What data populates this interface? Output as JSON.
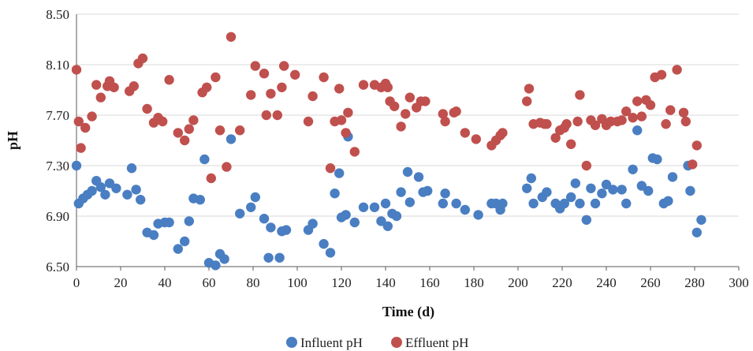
{
  "chart_data": {
    "type": "scatter",
    "title": "",
    "xlabel": "Time (d)",
    "ylabel": "pH",
    "xlim": [
      0,
      300
    ],
    "ylim": [
      6.5,
      8.5
    ],
    "xticks": [
      "0",
      "20",
      "40",
      "60",
      "80",
      "100",
      "120",
      "140",
      "160",
      "180",
      "200",
      "220",
      "240",
      "260",
      "280",
      "300"
    ],
    "yticks": [
      "6.50",
      "6.90",
      "7.30",
      "7.70",
      "8.10",
      "8.50"
    ],
    "grid": true,
    "legend": "bottom",
    "series": [
      {
        "name": "Influent pH",
        "color": "#4a7ec2",
        "points": [
          [
            0,
            7.3
          ],
          [
            1,
            7.0
          ],
          [
            3,
            7.04
          ],
          [
            5,
            7.07
          ],
          [
            7,
            7.1
          ],
          [
            9,
            7.18
          ],
          [
            11,
            7.13
          ],
          [
            13,
            7.07
          ],
          [
            15,
            7.16
          ],
          [
            18,
            7.12
          ],
          [
            23,
            7.07
          ],
          [
            25,
            7.28
          ],
          [
            27,
            7.11
          ],
          [
            29,
            7.03
          ],
          [
            32,
            6.77
          ],
          [
            35,
            6.75
          ],
          [
            37,
            6.84
          ],
          [
            40,
            6.85
          ],
          [
            42,
            6.85
          ],
          [
            46,
            6.64
          ],
          [
            49,
            6.7
          ],
          [
            51,
            6.86
          ],
          [
            53,
            7.04
          ],
          [
            56,
            7.03
          ],
          [
            58,
            7.35
          ],
          [
            60,
            6.53
          ],
          [
            63,
            6.51
          ],
          [
            65,
            6.6
          ],
          [
            67,
            6.56
          ],
          [
            70,
            7.51
          ],
          [
            74,
            6.92
          ],
          [
            79,
            6.97
          ],
          [
            81,
            7.05
          ],
          [
            85,
            6.88
          ],
          [
            87,
            6.57
          ],
          [
            88,
            6.81
          ],
          [
            92,
            6.57
          ],
          [
            93,
            6.78
          ],
          [
            95,
            6.79
          ],
          [
            105,
            6.79
          ],
          [
            107,
            6.84
          ],
          [
            112,
            6.68
          ],
          [
            115,
            6.61
          ],
          [
            117,
            7.08
          ],
          [
            119,
            7.24
          ],
          [
            120,
            6.89
          ],
          [
            122,
            6.91
          ],
          [
            123,
            7.53
          ],
          [
            126,
            6.85
          ],
          [
            130,
            6.97
          ],
          [
            135,
            6.97
          ],
          [
            138,
            6.86
          ],
          [
            140,
            7.0
          ],
          [
            141,
            6.82
          ],
          [
            143,
            6.92
          ],
          [
            145,
            6.9
          ],
          [
            147,
            7.09
          ],
          [
            150,
            7.25
          ],
          [
            151,
            7.01
          ],
          [
            155,
            7.21
          ],
          [
            157,
            7.09
          ],
          [
            159,
            7.1
          ],
          [
            166,
            7.0
          ],
          [
            167,
            7.08
          ],
          [
            172,
            7.0
          ],
          [
            176,
            6.95
          ],
          [
            182,
            6.91
          ],
          [
            188,
            7.0
          ],
          [
            190,
            7.0
          ],
          [
            192,
            6.95
          ],
          [
            193,
            7.0
          ],
          [
            204,
            7.12
          ],
          [
            206,
            7.2
          ],
          [
            207,
            7.0
          ],
          [
            211,
            7.05
          ],
          [
            213,
            7.09
          ],
          [
            217,
            7.0
          ],
          [
            219,
            6.96
          ],
          [
            221,
            7.0
          ],
          [
            224,
            7.05
          ],
          [
            226,
            7.16
          ],
          [
            228,
            7.0
          ],
          [
            231,
            6.87
          ],
          [
            233,
            7.12
          ],
          [
            235,
            7.0
          ],
          [
            238,
            7.08
          ],
          [
            240,
            7.15
          ],
          [
            243,
            7.11
          ],
          [
            247,
            7.11
          ],
          [
            249,
            7.0
          ],
          [
            252,
            7.27
          ],
          [
            254,
            7.58
          ],
          [
            256,
            7.14
          ],
          [
            259,
            7.1
          ],
          [
            261,
            7.36
          ],
          [
            263,
            7.35
          ],
          [
            266,
            7.0
          ],
          [
            268,
            7.02
          ],
          [
            270,
            7.21
          ],
          [
            277,
            7.3
          ],
          [
            278,
            7.1
          ],
          [
            281,
            6.77
          ],
          [
            283,
            6.87
          ]
        ]
      },
      {
        "name": "Effluent pH",
        "color": "#c0504d",
        "points": [
          [
            0,
            8.06
          ],
          [
            1,
            7.65
          ],
          [
            2,
            7.44
          ],
          [
            4,
            7.6
          ],
          [
            7,
            7.69
          ],
          [
            9,
            7.94
          ],
          [
            11,
            7.84
          ],
          [
            14,
            7.93
          ],
          [
            15,
            7.97
          ],
          [
            17,
            7.92
          ],
          [
            24,
            7.89
          ],
          [
            26,
            7.93
          ],
          [
            28,
            8.11
          ],
          [
            30,
            8.15
          ],
          [
            32,
            7.75
          ],
          [
            35,
            7.64
          ],
          [
            37,
            7.68
          ],
          [
            39,
            7.65
          ],
          [
            42,
            7.98
          ],
          [
            46,
            7.56
          ],
          [
            49,
            7.5
          ],
          [
            51,
            7.59
          ],
          [
            53,
            7.66
          ],
          [
            57,
            7.88
          ],
          [
            59,
            7.92
          ],
          [
            61,
            7.2
          ],
          [
            63,
            8.0
          ],
          [
            65,
            7.58
          ],
          [
            68,
            7.29
          ],
          [
            70,
            8.32
          ],
          [
            74,
            7.58
          ],
          [
            79,
            7.86
          ],
          [
            81,
            8.09
          ],
          [
            85,
            8.03
          ],
          [
            86,
            7.7
          ],
          [
            88,
            7.87
          ],
          [
            91,
            7.7
          ],
          [
            93,
            7.92
          ],
          [
            94,
            8.09
          ],
          [
            99,
            8.02
          ],
          [
            105,
            7.65
          ],
          [
            107,
            7.85
          ],
          [
            112,
            8.0
          ],
          [
            115,
            7.28
          ],
          [
            117,
            7.65
          ],
          [
            119,
            7.91
          ],
          [
            120,
            7.66
          ],
          [
            122,
            7.56
          ],
          [
            123,
            7.72
          ],
          [
            126,
            7.41
          ],
          [
            130,
            7.94
          ],
          [
            135,
            7.94
          ],
          [
            138,
            7.92
          ],
          [
            140,
            7.95
          ],
          [
            141,
            7.92
          ],
          [
            142,
            7.81
          ],
          [
            144,
            7.77
          ],
          [
            147,
            7.61
          ],
          [
            149,
            7.71
          ],
          [
            151,
            7.84
          ],
          [
            154,
            7.76
          ],
          [
            156,
            7.81
          ],
          [
            158,
            7.81
          ],
          [
            166,
            7.71
          ],
          [
            167,
            7.65
          ],
          [
            171,
            7.72
          ],
          [
            172,
            7.73
          ],
          [
            176,
            7.56
          ],
          [
            181,
            7.51
          ],
          [
            188,
            7.46
          ],
          [
            190,
            7.5
          ],
          [
            192,
            7.54
          ],
          [
            193,
            7.56
          ],
          [
            204,
            7.81
          ],
          [
            205,
            7.91
          ],
          [
            207,
            7.63
          ],
          [
            210,
            7.64
          ],
          [
            212,
            7.63
          ],
          [
            213,
            7.63
          ],
          [
            217,
            7.52
          ],
          [
            219,
            7.58
          ],
          [
            221,
            7.6
          ],
          [
            222,
            7.63
          ],
          [
            224,
            7.47
          ],
          [
            227,
            7.65
          ],
          [
            228,
            7.86
          ],
          [
            231,
            7.3
          ],
          [
            233,
            7.66
          ],
          [
            235,
            7.62
          ],
          [
            238,
            7.67
          ],
          [
            240,
            7.62
          ],
          [
            242,
            7.65
          ],
          [
            245,
            7.65
          ],
          [
            247,
            7.66
          ],
          [
            249,
            7.73
          ],
          [
            252,
            7.68
          ],
          [
            254,
            7.81
          ],
          [
            256,
            7.69
          ],
          [
            258,
            7.82
          ],
          [
            260,
            7.78
          ],
          [
            262,
            8.0
          ],
          [
            265,
            8.02
          ],
          [
            267,
            7.63
          ],
          [
            269,
            7.74
          ],
          [
            272,
            8.06
          ],
          [
            275,
            7.72
          ],
          [
            276,
            7.65
          ],
          [
            279,
            7.31
          ],
          [
            281,
            7.46
          ]
        ]
      }
    ]
  }
}
